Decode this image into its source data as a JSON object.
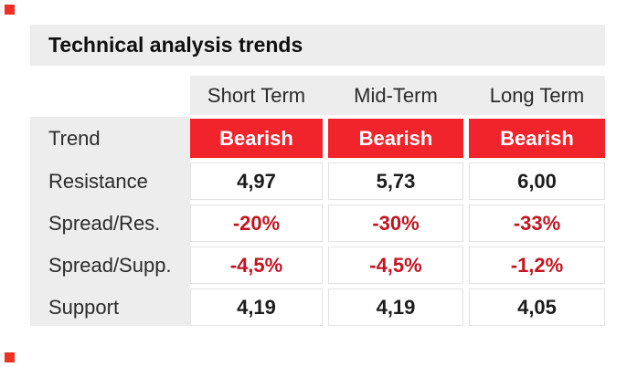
{
  "chart_data": {
    "type": "table",
    "title": "Technical analysis trends",
    "columns": [
      "Short Term",
      "Mid-Term",
      "Long Term"
    ],
    "rows": [
      {
        "label": "Trend",
        "style": "bearish-badge",
        "values": [
          "Bearish",
          "Bearish",
          "Bearish"
        ]
      },
      {
        "label": "Resistance",
        "style": "number",
        "values": [
          "4,97",
          "5,73",
          "6,00"
        ]
      },
      {
        "label": "Spread/Res.",
        "style": "negative-percent",
        "values": [
          "-20%",
          "-30%",
          "-33%"
        ]
      },
      {
        "label": "Spread/Supp.",
        "style": "negative-percent",
        "values": [
          "-4,5%",
          "-4,5%",
          "-1,2%"
        ]
      },
      {
        "label": "Support",
        "style": "number",
        "values": [
          "4,19",
          "4,19",
          "4,05"
        ]
      }
    ],
    "layout": {
      "legend": "none",
      "grid": "cells separated by white gaps",
      "label_column_position": "left",
      "header_position": "top"
    }
  },
  "colors": {
    "bearish_badge_bg": "#f1232b",
    "bearish_badge_text": "#ffffff",
    "negative_percent_text": "#c3141f",
    "number_text": "#1c1c1c",
    "band_bg": "#ededed",
    "page_bg": "#ffffff",
    "corner_marker": "#ef3124"
  }
}
